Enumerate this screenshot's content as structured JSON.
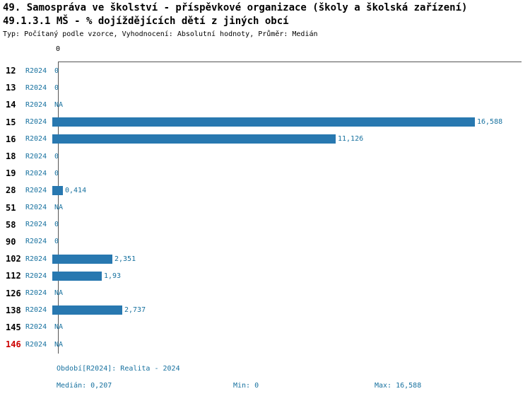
{
  "header": {
    "title": "49. Samospráva ve školství - příspěvkové organizace (školy a školská zařízení)",
    "subtitle": "49.1.3.1 MŠ - % dojíždějících dětí z jiných obcí",
    "meta": "Typ: Počítaný podle vzorce, Vyhodnocení: Absolutní hodnoty, Průměr: Medián"
  },
  "chart_data": {
    "type": "bar",
    "orientation": "horizontal",
    "series_label": "R2024",
    "categories": [
      "12",
      "13",
      "14",
      "15",
      "16",
      "18",
      "19",
      "28",
      "51",
      "58",
      "90",
      "102",
      "112",
      "126",
      "138",
      "145",
      "146"
    ],
    "values": [
      0,
      0,
      null,
      16.588,
      11.126,
      0,
      0,
      0.414,
      null,
      0,
      0,
      2.351,
      1.93,
      null,
      2.737,
      null,
      null
    ],
    "value_labels": [
      "0",
      "0",
      "NA",
      "16,588",
      "11,126",
      "0",
      "0",
      "0,414",
      "NA",
      "0",
      "0",
      "2,351",
      "1,93",
      "NA",
      "2,737",
      "NA",
      "NA"
    ],
    "na_label": "NA",
    "axis_zero_label": "0",
    "xlim": [
      0,
      16.588
    ],
    "grid": false,
    "legend_position": "none",
    "highlight_category": "146"
  },
  "footer": {
    "period": "Období[R2024]: Realita - 2024",
    "median": "Medián: 0,207",
    "min": "Min: 0",
    "max": "Max: 16,588"
  },
  "colors": {
    "bar": "#2878b0",
    "accent_text": "#17719f",
    "highlight": "#cc0000",
    "axis": "#555555"
  }
}
